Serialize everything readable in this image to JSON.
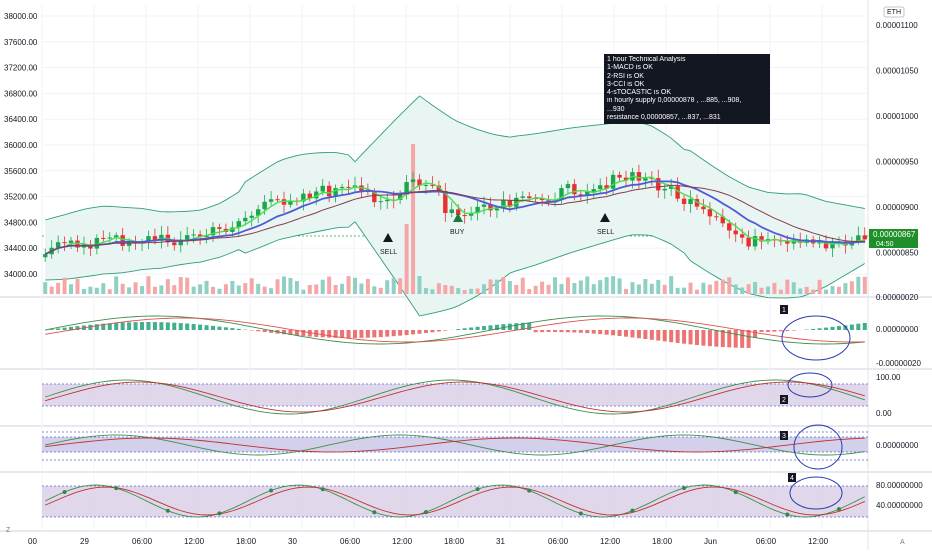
{
  "price_axis_left": {
    "ticks": [
      "38000.00",
      "37600.00",
      "37200.00",
      "36800.00",
      "36400.00",
      "36000.00",
      "35600.00",
      "35200.00",
      "34800.00",
      "34400.00",
      "34000.00"
    ]
  },
  "price_axis_right": {
    "currency": "ETH",
    "ticks": [
      "0.00001100",
      "0.00001050",
      "0.00001000",
      "0.00000950",
      "0.00000900",
      "0.00000850"
    ],
    "current_price": "0.00000867",
    "countdown": "04:50"
  },
  "pane_axes": {
    "macd": [
      "0.00000020",
      "0.00000000",
      "-0.00000020"
    ],
    "rsi": [
      "100.00",
      "0.00"
    ],
    "cci": [
      "0.00000000"
    ],
    "stoch": [
      "80.00000000",
      "40.00000000"
    ]
  },
  "time_axis": [
    "00",
    "29",
    "06:00",
    "12:00",
    "18:00",
    "30",
    "06:00",
    "12:00",
    "18:00",
    "31",
    "06:00",
    "12:00",
    "18:00",
    "Jun",
    "06:00",
    "12:00"
  ],
  "signals": [
    {
      "label": "SELL",
      "dir": "up"
    },
    {
      "label": "BUY",
      "dir": "up"
    },
    {
      "label": "SELL",
      "dir": "up"
    }
  ],
  "annotation": {
    "lines": [
      "1 hour Technical Analysis",
      " ",
      "1-MACD is OK",
      "2-RSI is OK",
      "3-CCI is OK",
      "4-sTOCASTIC is OK",
      "in hourly supply 0,00000878 , ...885, ...908,",
      "...930",
      "resistance 0,00000857, ...837, ...831"
    ]
  },
  "pane_markers": [
    "1",
    "2",
    "3",
    "4"
  ],
  "footer": {
    "left": "Z",
    "right": "A"
  },
  "colors": {
    "bull": "#1aa64a",
    "bear": "#e83030",
    "ema_fast": "#4cde4c",
    "ema_slow": "#4f5bd5",
    "ma": "#8a3a4a",
    "bollinger": "#2e9e7a",
    "band_fill": "#e9f5f3",
    "volume_bull": "#8fd0c4",
    "volume_bear": "#f5a7a7",
    "osc_band": "#d9cde6",
    "price_label": "#1f8f2a"
  }
}
